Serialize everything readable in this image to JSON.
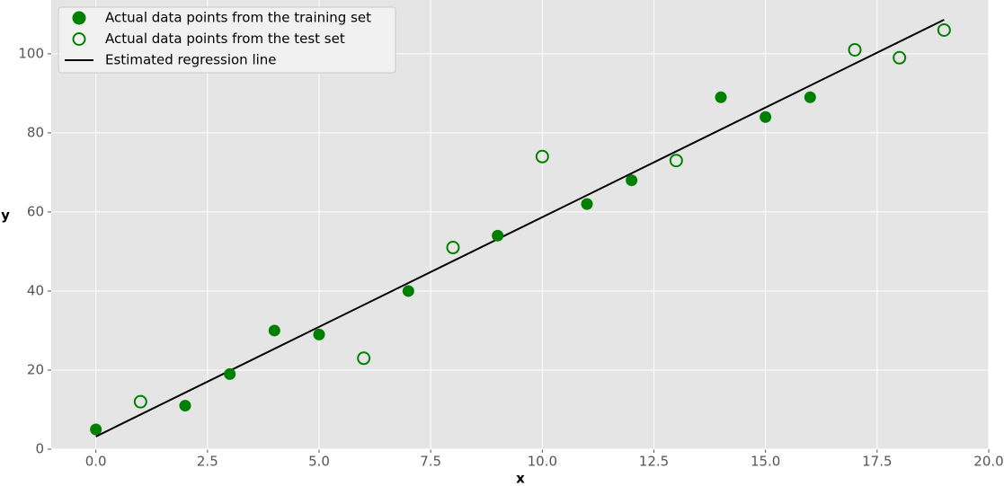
{
  "chart_data": {
    "type": "scatter",
    "x_label": "x",
    "y_label": "y",
    "xlim": [
      -1,
      20
    ],
    "ylim": [
      0,
      113.6
    ],
    "xticks": [
      {
        "value": 0,
        "label": "0.0"
      },
      2.5,
      {
        "value": 5,
        "label": "5.0"
      },
      7.5,
      {
        "value": 10,
        "label": "10.0"
      },
      12.5,
      {
        "value": 15,
        "label": "15.0"
      },
      17.5,
      {
        "value": 20,
        "label": "20.0"
      }
    ],
    "yticks": [
      0,
      20,
      40,
      60,
      80,
      100
    ],
    "grid": true,
    "legend": "upper-left",
    "series": [
      {
        "name": "Actual data points from the training set",
        "color": "#008000",
        "style": "filled",
        "x": [
          0,
          2,
          3,
          4,
          5,
          7,
          9,
          11,
          12,
          14,
          15,
          16
        ],
        "values": [
          5,
          11,
          19,
          30,
          29,
          40,
          54,
          62,
          68,
          89,
          84,
          89
        ]
      },
      {
        "name": "Actual data points from the test set",
        "color": "#008000",
        "style": "hollow",
        "x": [
          1,
          6,
          8,
          10,
          13,
          17,
          18,
          19
        ],
        "values": [
          12,
          23,
          51,
          74,
          73,
          101,
          99,
          106
        ]
      },
      {
        "name": "Estimated regression line",
        "color": "#000000",
        "style": "line",
        "x": [
          0,
          19
        ],
        "values": [
          3.2,
          108.6
        ]
      }
    ]
  }
}
